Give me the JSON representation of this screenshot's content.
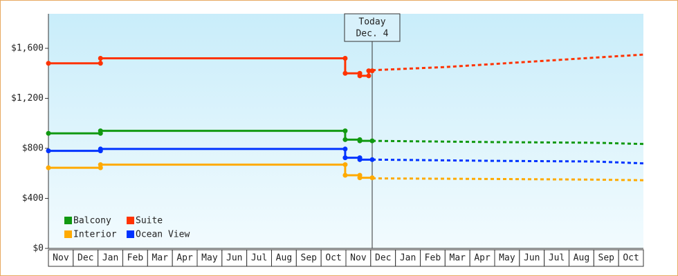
{
  "chart_data": {
    "type": "line",
    "xlim": [
      0,
      24
    ],
    "xticks": [
      {
        "value": 0.5,
        "label": "Nov"
      },
      {
        "value": 1.5,
        "label": "Dec"
      },
      {
        "value": 2.5,
        "label": "Jan"
      },
      {
        "value": 3.5,
        "label": "Feb"
      },
      {
        "value": 4.5,
        "label": "Mar"
      },
      {
        "value": 5.5,
        "label": "Apr"
      },
      {
        "value": 6.5,
        "label": "May"
      },
      {
        "value": 7.5,
        "label": "Jun"
      },
      {
        "value": 8.5,
        "label": "Jul"
      },
      {
        "value": 9.5,
        "label": "Aug"
      },
      {
        "value": 10.5,
        "label": "Sep"
      },
      {
        "value": 11.5,
        "label": "Oct"
      },
      {
        "value": 12.5,
        "label": "Nov"
      },
      {
        "value": 13.5,
        "label": "Dec"
      },
      {
        "value": 14.5,
        "label": "Jan"
      },
      {
        "value": 15.5,
        "label": "Feb"
      },
      {
        "value": 16.5,
        "label": "Mar"
      },
      {
        "value": 17.5,
        "label": "Apr"
      },
      {
        "value": 18.5,
        "label": "May"
      },
      {
        "value": 19.5,
        "label": "Jun"
      },
      {
        "value": 20.5,
        "label": "Jul"
      },
      {
        "value": 21.5,
        "label": "Aug"
      },
      {
        "value": 22.5,
        "label": "Sep"
      },
      {
        "value": 23.5,
        "label": "Oct"
      }
    ],
    "ylim": [
      0,
      1876
    ],
    "yticks": [
      {
        "value": 0,
        "label": "$0"
      },
      {
        "value": 400,
        "label": "$400"
      },
      {
        "value": 800,
        "label": "$800"
      },
      {
        "value": 1200,
        "label": "$1,200"
      },
      {
        "value": 1600,
        "label": "$1,600"
      }
    ],
    "legend": "lower left",
    "annotation": {
      "lines": [
        "Today",
        "Dec. 4"
      ],
      "x": 13.06
    },
    "series": [
      {
        "name": "Balcony",
        "color": "#119911",
        "x": [
          0,
          2.1,
          2.1,
          11.97,
          11.97,
          12.56,
          12.56,
          13.06
        ],
        "values": [
          920,
          920,
          940,
          940,
          870,
          870,
          860,
          860
        ],
        "forecast_x": [
          13.06,
          18,
          22,
          24
        ],
        "forecast_values": [
          860,
          850,
          845,
          835
        ]
      },
      {
        "name": "Suite",
        "color": "#ff3300",
        "x": [
          0,
          2.1,
          2.1,
          11.97,
          11.97,
          12.56,
          12.56,
          12.92,
          12.92,
          13.06
        ],
        "values": [
          1480,
          1480,
          1520,
          1520,
          1400,
          1400,
          1380,
          1380,
          1420,
          1420
        ],
        "forecast_x": [
          13.06,
          16,
          20,
          24
        ],
        "forecast_values": [
          1425,
          1450,
          1500,
          1550
        ]
      },
      {
        "name": "Interior",
        "color": "#ffaa00",
        "x": [
          0,
          2.1,
          2.1,
          11.97,
          11.97,
          12.56,
          12.56,
          13.06
        ],
        "values": [
          645,
          645,
          670,
          670,
          585,
          585,
          565,
          565
        ],
        "forecast_x": [
          13.06,
          18,
          22,
          24
        ],
        "forecast_values": [
          560,
          555,
          550,
          545
        ]
      },
      {
        "name": "Ocean View",
        "color": "#0033ff",
        "x": [
          0,
          2.1,
          2.1,
          11.97,
          11.97,
          12.56,
          12.56,
          13.06
        ],
        "values": [
          780,
          780,
          795,
          795,
          725,
          725,
          710,
          710
        ],
        "forecast_x": [
          13.06,
          18,
          22,
          24
        ],
        "forecast_values": [
          710,
          700,
          695,
          680
        ]
      }
    ]
  }
}
